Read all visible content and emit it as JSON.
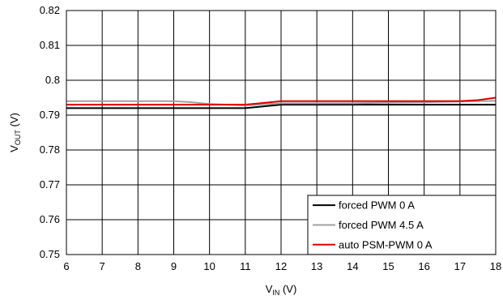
{
  "chart_data": {
    "type": "line",
    "xlabel": {
      "main": "V",
      "sub": "IN",
      "unit": " (V)"
    },
    "ylabel": {
      "main": "V",
      "sub": "OUT",
      "unit": " (V)"
    },
    "xlim": [
      6,
      18
    ],
    "ylim": [
      0.75,
      0.82
    ],
    "xticks": [
      "6",
      "7",
      "8",
      "9",
      "10",
      "11",
      "12",
      "13",
      "14",
      "15",
      "16",
      "17",
      "18"
    ],
    "yticks": [
      "0.75",
      "0.76",
      "0.77",
      "0.78",
      "0.79",
      "0.8",
      "0.81",
      "0.82"
    ],
    "grid": true,
    "legend_position": "bottom-right",
    "series": [
      {
        "name": "forced PWM 0 A",
        "color": "#000000",
        "x": [
          6,
          7,
          8,
          9,
          10,
          10.5,
          11,
          11.5,
          12,
          13,
          14,
          15,
          16,
          17,
          18
        ],
        "y": [
          0.792,
          0.792,
          0.792,
          0.792,
          0.792,
          0.792,
          0.792,
          0.7925,
          0.793,
          0.793,
          0.793,
          0.793,
          0.793,
          0.793,
          0.793
        ]
      },
      {
        "name": "forced PWM 4.5 A",
        "color": "#a0a0a0",
        "x": [
          6,
          7,
          8,
          9,
          9.5,
          10,
          11,
          11.5,
          12,
          13,
          14,
          15,
          16,
          17,
          18
        ],
        "y": [
          0.794,
          0.794,
          0.794,
          0.794,
          0.7937,
          0.7932,
          0.7928,
          0.7931,
          0.7934,
          0.7934,
          0.7934,
          0.7936,
          0.7937,
          0.7939,
          0.7941
        ]
      },
      {
        "name": "auto PSM-PWM 0 A",
        "color": "#e00000",
        "x": [
          6,
          7,
          8,
          9,
          10,
          11,
          11.5,
          12,
          12.5,
          13,
          14,
          15,
          16,
          17,
          17.5,
          18
        ],
        "y": [
          0.793,
          0.793,
          0.793,
          0.793,
          0.793,
          0.793,
          0.7935,
          0.794,
          0.794,
          0.794,
          0.794,
          0.794,
          0.794,
          0.794,
          0.7943,
          0.795
        ]
      }
    ]
  }
}
